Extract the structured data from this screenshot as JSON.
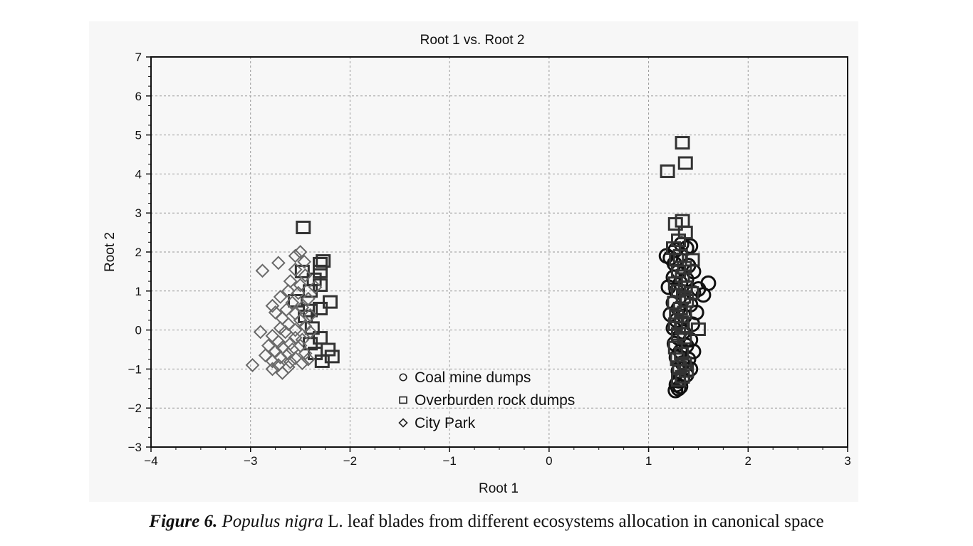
{
  "chart_data": {
    "type": "scatter",
    "title": "Root 1 vs. Root 2",
    "xlabel": "Root 1",
    "ylabel": "Root 2",
    "xlim": [
      -4,
      3
    ],
    "ylim": [
      -3,
      7
    ],
    "xticks": [
      -4,
      -3,
      -2,
      -1,
      0,
      1,
      2,
      3
    ],
    "yticks": [
      -3,
      -2,
      -1,
      0,
      1,
      2,
      3,
      4,
      5,
      6,
      7
    ],
    "grid": true,
    "legend_position": "inside-bottom-center",
    "series": [
      {
        "name": "Coal mine dumps",
        "marker": "circle",
        "color": "#111111",
        "points": [
          [
            1.18,
            1.9
          ],
          [
            1.22,
            1.85
          ],
          [
            1.27,
            2.05
          ],
          [
            1.33,
            2.2
          ],
          [
            1.38,
            2.1
          ],
          [
            1.42,
            2.15
          ],
          [
            1.26,
            1.7
          ],
          [
            1.4,
            1.65
          ],
          [
            1.3,
            1.5
          ],
          [
            1.45,
            1.5
          ],
          [
            1.25,
            1.35
          ],
          [
            1.38,
            1.3
          ],
          [
            1.32,
            1.2
          ],
          [
            1.6,
            1.2
          ],
          [
            1.5,
            1.05
          ],
          [
            1.2,
            1.1
          ],
          [
            1.28,
            1.0
          ],
          [
            1.45,
            0.95
          ],
          [
            1.55,
            0.9
          ],
          [
            1.35,
            0.8
          ],
          [
            1.25,
            0.7
          ],
          [
            1.42,
            0.65
          ],
          [
            1.3,
            0.55
          ],
          [
            1.48,
            0.45
          ],
          [
            1.22,
            0.4
          ],
          [
            1.36,
            0.35
          ],
          [
            1.28,
            0.25
          ],
          [
            1.44,
            0.15
          ],
          [
            1.25,
            0.05
          ],
          [
            1.35,
            -0.05
          ],
          [
            1.3,
            -0.2
          ],
          [
            1.42,
            -0.25
          ],
          [
            1.26,
            -0.35
          ],
          [
            1.38,
            -0.4
          ],
          [
            1.32,
            -0.55
          ],
          [
            1.45,
            -0.55
          ],
          [
            1.28,
            -0.7
          ],
          [
            1.4,
            -0.75
          ],
          [
            1.34,
            -0.85
          ],
          [
            1.42,
            -1.0
          ],
          [
            1.3,
            -1.05
          ],
          [
            1.38,
            -1.15
          ],
          [
            1.34,
            -1.25
          ],
          [
            1.3,
            -1.3
          ],
          [
            1.28,
            -1.4
          ],
          [
            1.32,
            -1.45
          ],
          [
            1.3,
            -1.5
          ],
          [
            1.27,
            -1.55
          ]
        ]
      },
      {
        "name": "Overburden rock dumps",
        "marker": "square",
        "color": "#333333",
        "points": [
          [
            1.34,
            4.8
          ],
          [
            1.37,
            4.28
          ],
          [
            1.19,
            4.07
          ],
          [
            1.34,
            2.8
          ],
          [
            1.27,
            2.72
          ],
          [
            1.37,
            2.5
          ],
          [
            1.3,
            2.3
          ],
          [
            1.25,
            2.1
          ],
          [
            1.32,
            1.9
          ],
          [
            1.28,
            1.8
          ],
          [
            1.44,
            1.8
          ],
          [
            1.36,
            1.6
          ],
          [
            1.3,
            1.5
          ],
          [
            1.34,
            1.38
          ],
          [
            1.27,
            1.2
          ],
          [
            1.37,
            1.1
          ],
          [
            1.3,
            1.0
          ],
          [
            1.43,
            0.95
          ],
          [
            1.35,
            0.85
          ],
          [
            1.26,
            0.7
          ],
          [
            1.38,
            0.75
          ],
          [
            1.32,
            0.55
          ],
          [
            1.36,
            0.45
          ],
          [
            1.28,
            0.35
          ],
          [
            1.33,
            0.2
          ],
          [
            1.27,
            0.15
          ],
          [
            1.34,
            0.05
          ],
          [
            1.5,
            0.02
          ],
          [
            1.3,
            -0.1
          ],
          [
            1.36,
            -0.2
          ],
          [
            1.27,
            -0.45
          ],
          [
            1.33,
            -0.6
          ],
          [
            1.29,
            -0.75
          ],
          [
            1.36,
            -0.85
          ],
          [
            1.31,
            -0.95
          ],
          [
            1.38,
            -1.05
          ],
          [
            1.34,
            -1.2
          ],
          [
            1.3,
            -1.28
          ],
          [
            -2.47,
            2.63
          ],
          [
            -2.27,
            1.77
          ],
          [
            -2.3,
            1.7
          ],
          [
            -2.48,
            1.5
          ],
          [
            -2.3,
            1.5
          ],
          [
            -2.36,
            1.3
          ],
          [
            -2.3,
            1.15
          ],
          [
            -2.4,
            1.0
          ],
          [
            -2.55,
            0.75
          ],
          [
            -2.2,
            0.72
          ],
          [
            -2.3,
            0.55
          ],
          [
            -2.4,
            0.5
          ],
          [
            -2.45,
            0.35
          ],
          [
            -2.38,
            0.05
          ],
          [
            -2.3,
            -0.2
          ],
          [
            -2.4,
            -0.35
          ],
          [
            -2.22,
            -0.5
          ],
          [
            -2.35,
            -0.6
          ],
          [
            -2.18,
            -0.68
          ],
          [
            -2.28,
            -0.8
          ]
        ]
      },
      {
        "name": "City Park",
        "marker": "diamond",
        "color": "#6a6a6a",
        "points": [
          [
            -2.5,
            2.0
          ],
          [
            -2.55,
            1.9
          ],
          [
            -2.46,
            1.75
          ],
          [
            -2.72,
            1.72
          ],
          [
            -2.88,
            1.52
          ],
          [
            -2.55,
            1.55
          ],
          [
            -2.45,
            1.4
          ],
          [
            -2.6,
            1.25
          ],
          [
            -2.5,
            1.15
          ],
          [
            -2.35,
            1.1
          ],
          [
            -2.62,
            1.0
          ],
          [
            -2.52,
            0.95
          ],
          [
            -2.7,
            0.85
          ],
          [
            -2.42,
            0.8
          ],
          [
            -2.58,
            0.7
          ],
          [
            -2.78,
            0.62
          ],
          [
            -2.48,
            0.58
          ],
          [
            -2.64,
            0.52
          ],
          [
            -2.75,
            0.45
          ],
          [
            -2.55,
            0.42
          ],
          [
            -2.4,
            0.38
          ],
          [
            -2.68,
            0.3
          ],
          [
            -2.5,
            0.25
          ],
          [
            -2.62,
            0.15
          ],
          [
            -2.45,
            0.1
          ],
          [
            -2.7,
            0.05
          ],
          [
            -2.55,
            0.0
          ],
          [
            -2.9,
            -0.05
          ],
          [
            -2.65,
            -0.05
          ],
          [
            -2.4,
            -0.05
          ],
          [
            -2.78,
            -0.15
          ],
          [
            -2.55,
            -0.2
          ],
          [
            -2.48,
            -0.25
          ],
          [
            -2.72,
            -0.3
          ],
          [
            -2.6,
            -0.35
          ],
          [
            -2.82,
            -0.4
          ],
          [
            -2.5,
            -0.4
          ],
          [
            -2.68,
            -0.45
          ],
          [
            -2.58,
            -0.5
          ],
          [
            -2.75,
            -0.55
          ],
          [
            -2.45,
            -0.6
          ],
          [
            -2.62,
            -0.62
          ],
          [
            -2.85,
            -0.65
          ],
          [
            -2.7,
            -0.7
          ],
          [
            -2.55,
            -0.72
          ],
          [
            -2.42,
            -0.75
          ],
          [
            -2.78,
            -0.8
          ],
          [
            -2.6,
            -0.82
          ],
          [
            -2.48,
            -0.85
          ],
          [
            -2.98,
            -0.9
          ],
          [
            -2.72,
            -0.9
          ],
          [
            -2.62,
            -0.95
          ],
          [
            -2.78,
            -1.0
          ],
          [
            -2.68,
            -1.1
          ]
        ]
      }
    ]
  },
  "caption": {
    "label": "Figure 6.",
    "species": "Populus nigra",
    "rest": " L. leaf blades from different ecosystems allocation in canonical space"
  }
}
